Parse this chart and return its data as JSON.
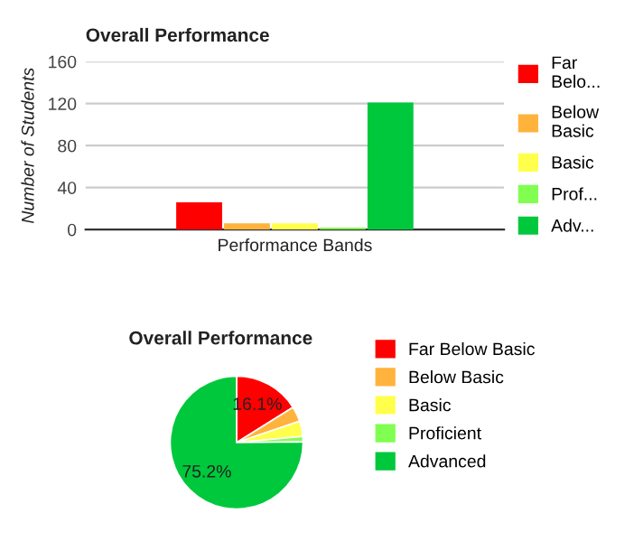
{
  "chart_data": [
    {
      "type": "bar",
      "title": "Overall Performance",
      "ylabel": "Number of Students",
      "categories": [
        "Performance Bands"
      ],
      "ylim": [
        0,
        160
      ],
      "yticks": [
        0,
        40,
        80,
        120,
        160
      ],
      "grid": "y",
      "legend": "right",
      "series": [
        {
          "name": "Far Belo...",
          "color": "#ff0000",
          "values": [
            26
          ]
        },
        {
          "name": "Below Basic",
          "color": "#ffb33c",
          "values": [
            6
          ]
        },
        {
          "name": "Basic",
          "color": "#ffff4c",
          "values": [
            6
          ]
        },
        {
          "name": "Prof...",
          "color": "#80ff50",
          "values": [
            2
          ]
        },
        {
          "name": "Adv...",
          "color": "#00c83c",
          "values": [
            121
          ]
        }
      ]
    },
    {
      "type": "pie",
      "title": "Overall Performance",
      "legend": "right",
      "categories": [
        "Far Below Basic",
        "Below Basic",
        "Basic",
        "Proficient",
        "Advanced"
      ],
      "values": [
        16.1,
        3.7,
        3.7,
        1.3,
        75.2
      ],
      "colors": [
        "#ff0000",
        "#ffb33c",
        "#ffff4c",
        "#80ff50",
        "#00c83c"
      ],
      "value_labels": [
        "16.1%",
        null,
        null,
        null,
        "75.2%"
      ]
    }
  ]
}
